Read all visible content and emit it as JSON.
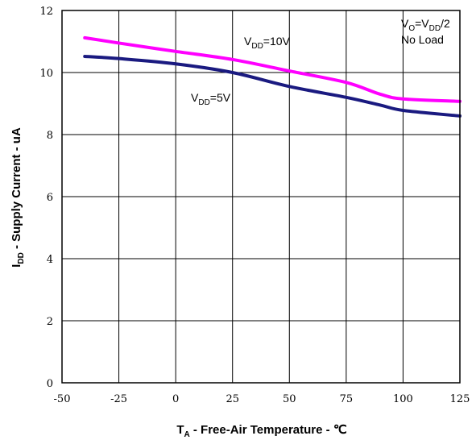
{
  "chart_data": {
    "type": "line",
    "xlabel": {
      "main": "T",
      "sub": "A",
      "rest": " - Free-Air Temperature - ℃"
    },
    "ylabel": {
      "main": "I",
      "sub": "DD",
      "rest": " - Supply Current - uA"
    },
    "xlim": [
      -50,
      125
    ],
    "ylim": [
      0,
      12
    ],
    "x_ticks": [
      "-50",
      "-25",
      "0",
      "25",
      "50",
      "75",
      "100",
      "125"
    ],
    "y_ticks": [
      "0",
      "2",
      "4",
      "6",
      "8",
      "10",
      "12"
    ],
    "grid": true,
    "series": [
      {
        "name": {
          "main": "V",
          "sub": "DD",
          "rest": "=10V"
        },
        "color": "#ff00ff",
        "points": [
          [
            -40,
            11.12
          ],
          [
            -25,
            10.95
          ],
          [
            0,
            10.68
          ],
          [
            25,
            10.42
          ],
          [
            50,
            10.05
          ],
          [
            75,
            9.68
          ],
          [
            90,
            9.3
          ],
          [
            100,
            9.15
          ],
          [
            125,
            9.07
          ]
        ]
      },
      {
        "name": {
          "main": "V",
          "sub": "DD",
          "rest": "=5V"
        },
        "color": "#1a1a80",
        "points": [
          [
            -40,
            10.52
          ],
          [
            -25,
            10.45
          ],
          [
            0,
            10.28
          ],
          [
            25,
            10.0
          ],
          [
            50,
            9.55
          ],
          [
            75,
            9.2
          ],
          [
            90,
            8.95
          ],
          [
            100,
            8.78
          ],
          [
            125,
            8.6
          ]
        ]
      }
    ],
    "condition": {
      "line1": {
        "a": "V",
        "a_sub": "O",
        "b": "=V",
        "b_sub": "DD",
        "c": "/2"
      },
      "line2": "No Load"
    }
  }
}
